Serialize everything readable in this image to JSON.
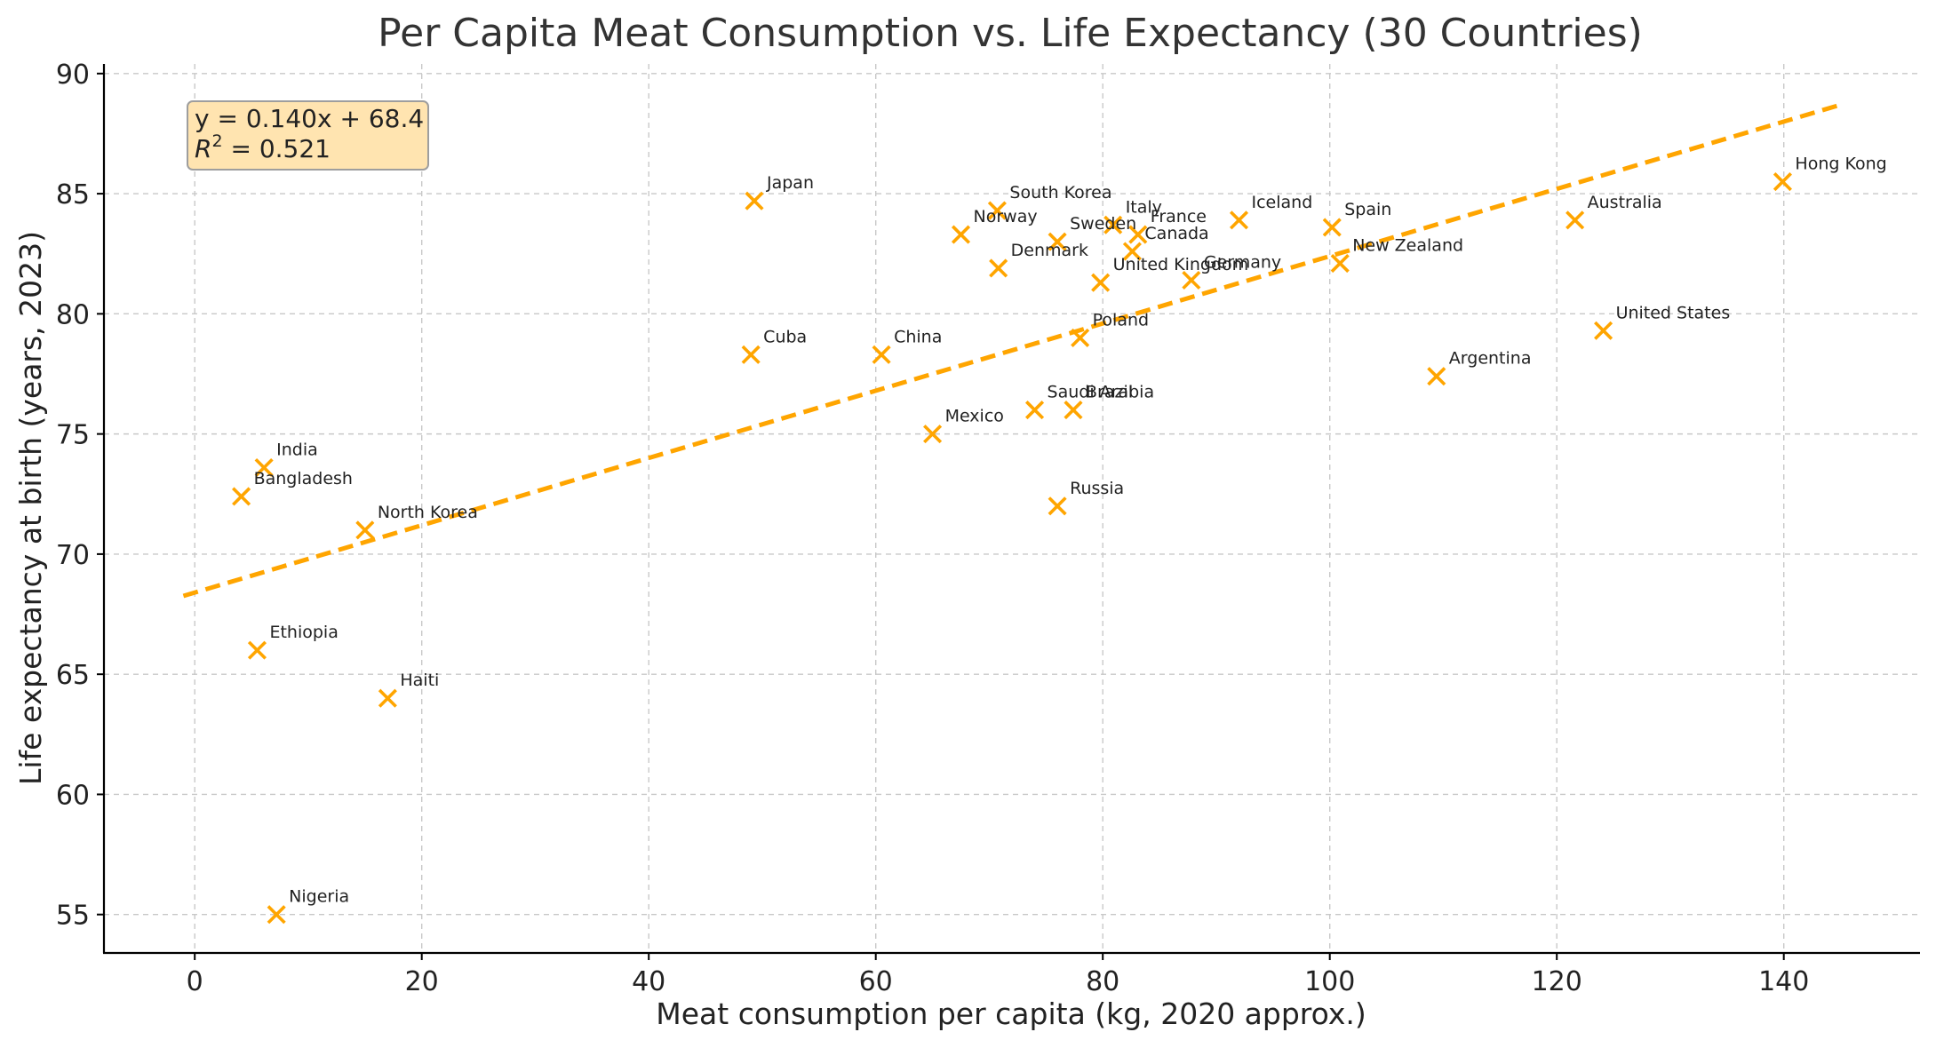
{
  "chart_data": {
    "type": "scatter",
    "title": "Per Capita Meat Consumption vs. Life Expectancy (30 Countries)",
    "xlabel": "Meat consumption per capita (kg, 2020 approx.)",
    "ylabel": "Life expectancy at birth (years, 2023)",
    "xlim": [
      -8,
      152
    ],
    "ylim": [
      53.4,
      90.4
    ],
    "xticks": [
      0,
      20,
      40,
      60,
      80,
      100,
      120,
      140
    ],
    "yticks": [
      55,
      60,
      65,
      70,
      75,
      80,
      85,
      90
    ],
    "grid": true,
    "marker_color": "#FFA500",
    "trendline": {
      "slope": 0.14,
      "intercept": 68.4,
      "x_range": [
        -1,
        145
      ],
      "color": "#FFA500",
      "style": "dashed",
      "equation_text": "y = 0.140x + 68.4",
      "r2_prefix": "R",
      "r2_sup": "2",
      "r2_value": " = 0.521"
    },
    "annotation_box": {
      "fill": "#FFE4B0",
      "stroke": "#9e9e9e",
      "placement": "top-left"
    },
    "points": [
      {
        "label": "Japan",
        "x": 49.3,
        "y": 84.7
      },
      {
        "label": "South Korea",
        "x": 70.7,
        "y": 84.3
      },
      {
        "label": "Italy",
        "x": 80.9,
        "y": 83.7
      },
      {
        "label": "France",
        "x": 83.1,
        "y": 83.3
      },
      {
        "label": "Norway",
        "x": 67.5,
        "y": 83.3
      },
      {
        "label": "Sweden",
        "x": 76.0,
        "y": 83.0
      },
      {
        "label": "Canada",
        "x": 82.6,
        "y": 82.6
      },
      {
        "label": "Denmark",
        "x": 70.8,
        "y": 81.9
      },
      {
        "label": "Iceland",
        "x": 92.0,
        "y": 83.9
      },
      {
        "label": "Spain",
        "x": 100.2,
        "y": 83.6
      },
      {
        "label": "New Zealand",
        "x": 100.9,
        "y": 82.1
      },
      {
        "label": "United Kingdom",
        "x": 79.8,
        "y": 81.3
      },
      {
        "label": "Germany",
        "x": 87.8,
        "y": 81.4
      },
      {
        "label": "Australia",
        "x": 121.6,
        "y": 83.9
      },
      {
        "label": "Hong Kong",
        "x": 139.9,
        "y": 85.5
      },
      {
        "label": "United States",
        "x": 124.1,
        "y": 79.3
      },
      {
        "label": "Poland",
        "x": 78.0,
        "y": 79.0
      },
      {
        "label": "Argentina",
        "x": 109.4,
        "y": 77.4
      },
      {
        "label": "Cuba",
        "x": 49.0,
        "y": 78.3
      },
      {
        "label": "China",
        "x": 60.5,
        "y": 78.3
      },
      {
        "label": "Saudi Arabia",
        "x": 74.0,
        "y": 76.0
      },
      {
        "label": "Brazil",
        "x": 77.4,
        "y": 76.0
      },
      {
        "label": "Mexico",
        "x": 65.0,
        "y": 75.0
      },
      {
        "label": "Russia",
        "x": 76.0,
        "y": 72.0
      },
      {
        "label": "India",
        "x": 6.1,
        "y": 73.6
      },
      {
        "label": "Bangladesh",
        "x": 4.1,
        "y": 72.4
      },
      {
        "label": "North Korea",
        "x": 15.0,
        "y": 71.0
      },
      {
        "label": "Ethiopia",
        "x": 5.5,
        "y": 66.0
      },
      {
        "label": "Haiti",
        "x": 17.0,
        "y": 64.0
      },
      {
        "label": "Nigeria",
        "x": 7.2,
        "y": 55.0
      }
    ]
  }
}
